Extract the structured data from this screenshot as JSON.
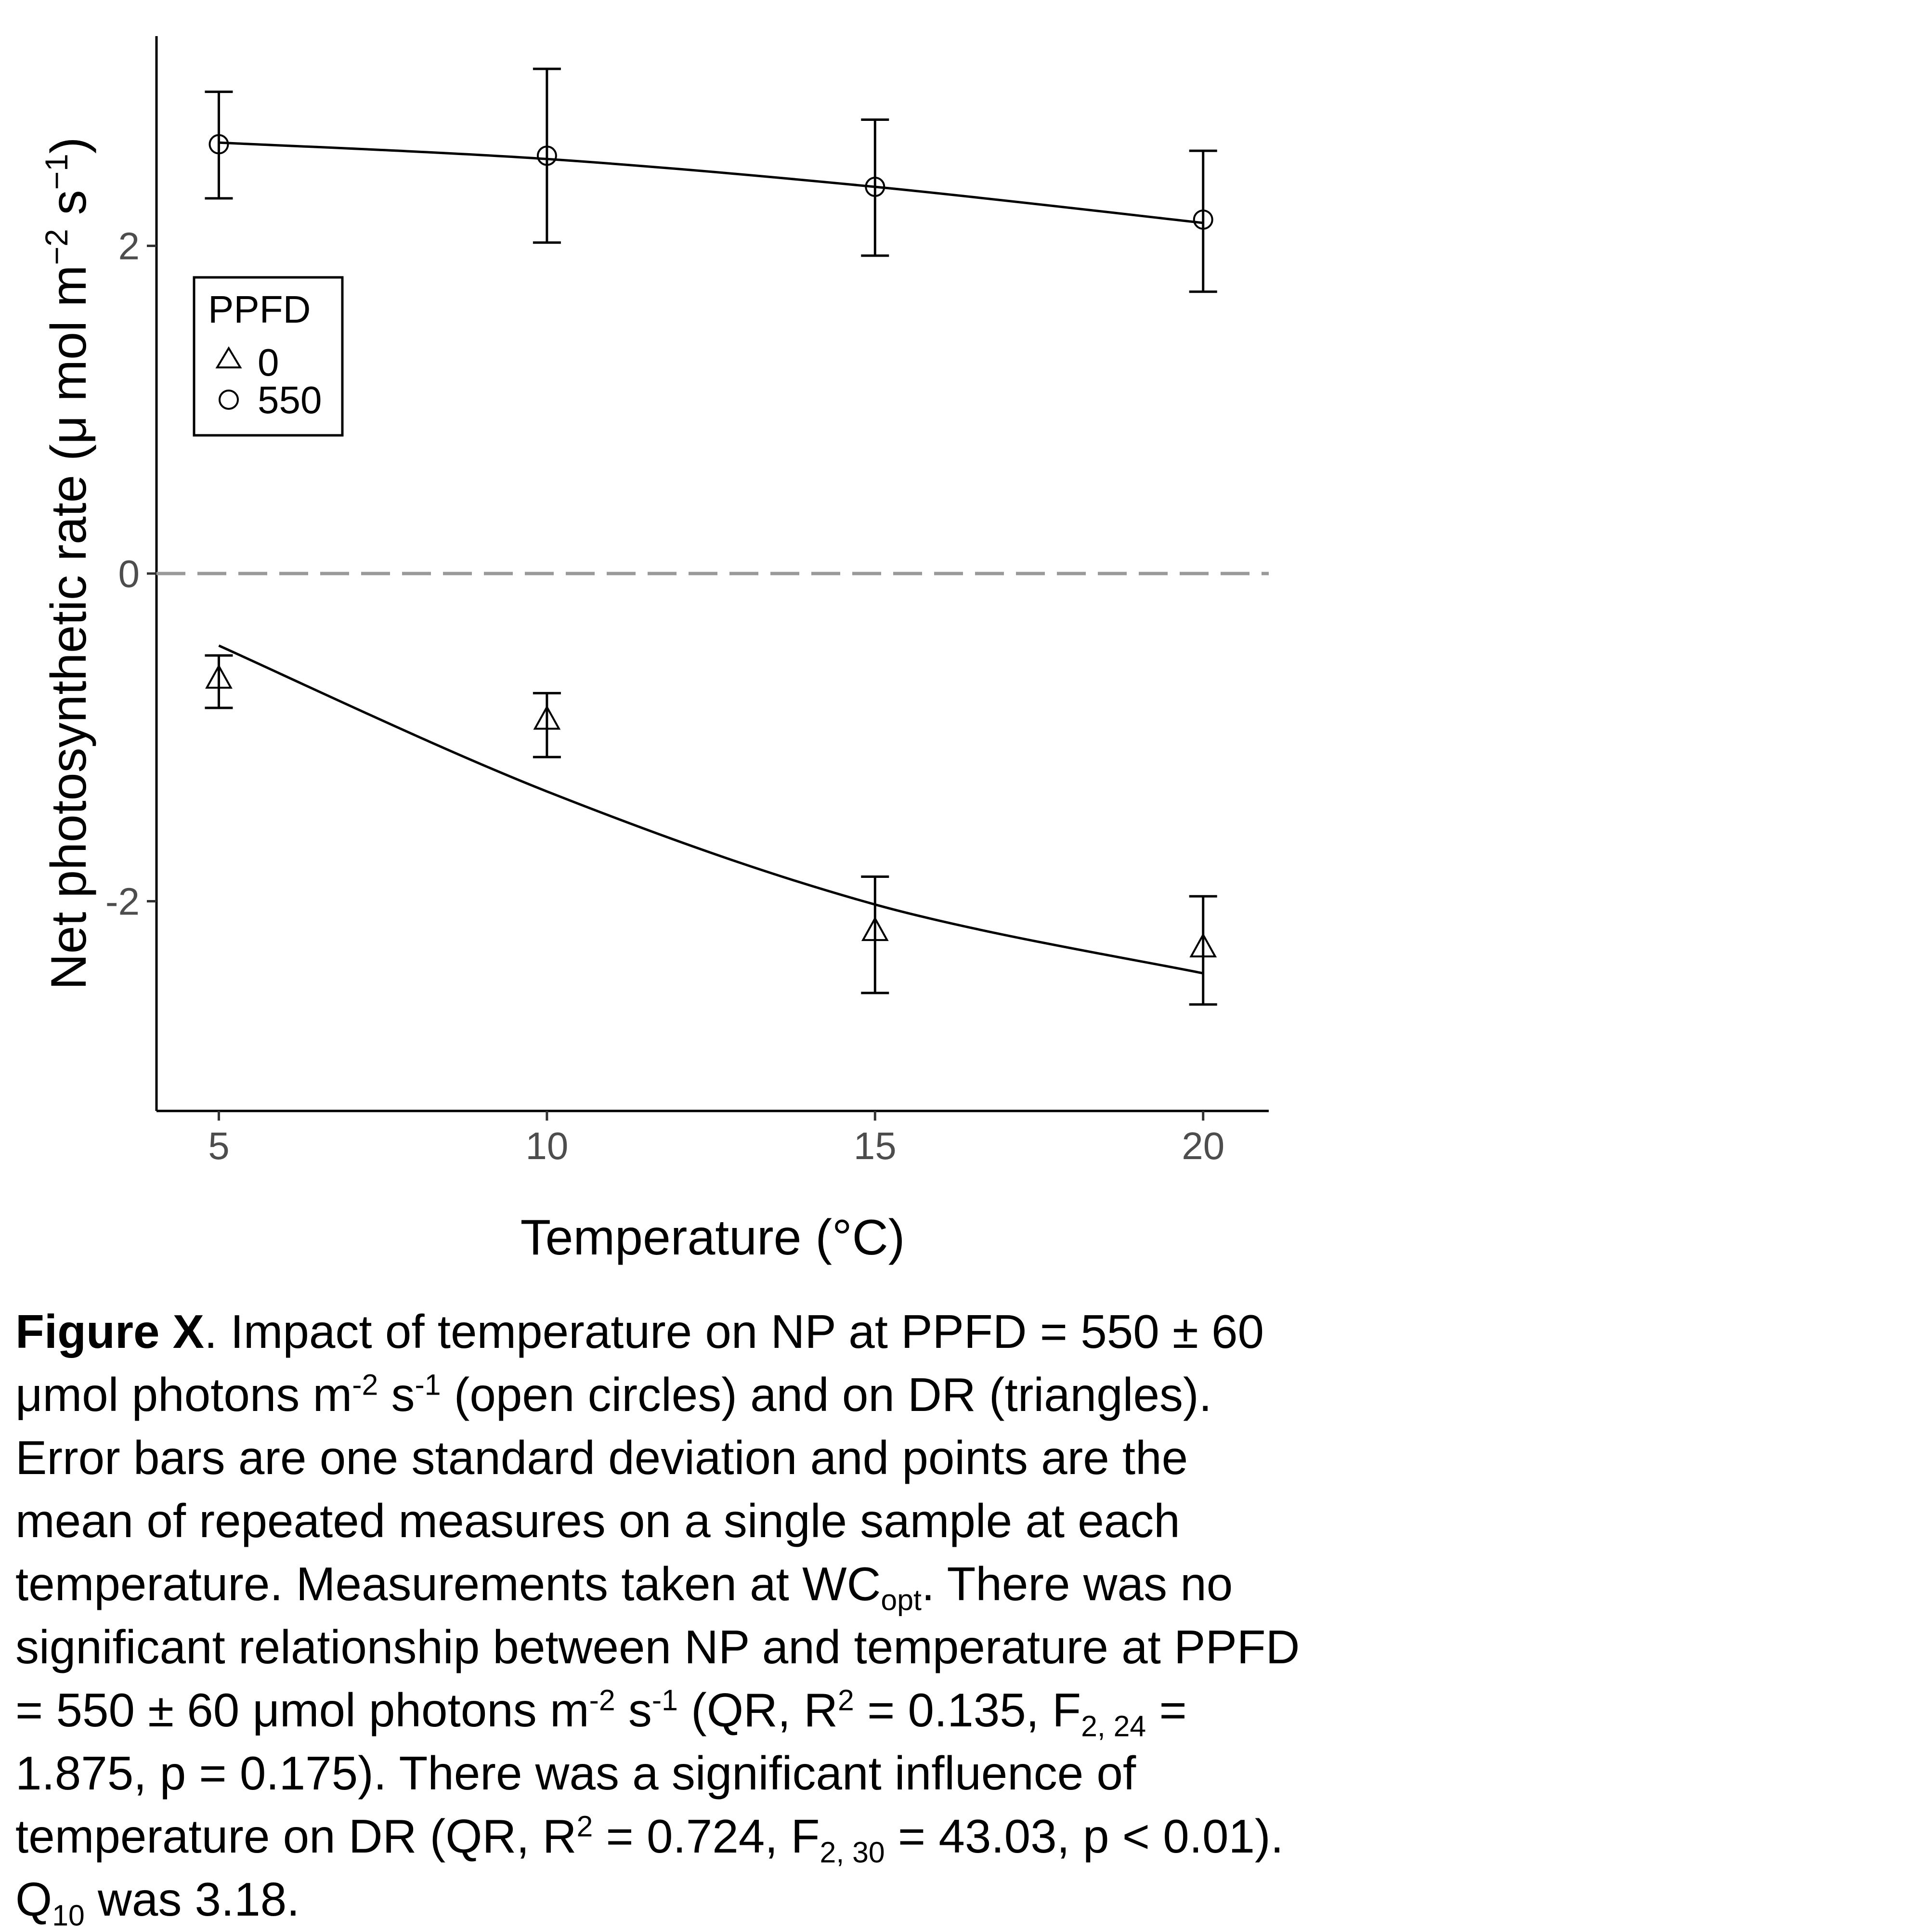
{
  "chart_data": {
    "type": "scatter",
    "x": [
      5,
      10,
      15,
      20
    ],
    "xlabel": "Temperature (°C)",
    "ylabel": "Net photosynthetic rate (μ mol m⁻² s⁻¹)",
    "ylabel_parts": {
      "main": "Net photosynthetic rate (μ mol m",
      "exp1": "−2",
      "mid": " s",
      "exp2": "−1",
      "end": ")"
    },
    "xlim": [
      4.05,
      21
    ],
    "ylim": [
      -3.28,
      3.28
    ],
    "xticks": [
      5,
      10,
      15,
      20
    ],
    "yticks": [
      -2,
      0,
      2
    ],
    "ytick_labels": [
      "-2",
      "0",
      "2"
    ],
    "grid": false,
    "reference_line": {
      "y": 0,
      "style": "dashed",
      "color": "#999999"
    },
    "legend": {
      "title": "PPFD",
      "placement": "top-left",
      "entries": [
        {
          "label": "0",
          "marker": "triangle"
        },
        {
          "label": "550",
          "marker": "circle"
        }
      ]
    },
    "series": [
      {
        "name": "550",
        "marker": "circle",
        "y": [
          2.62,
          2.55,
          2.36,
          2.16
        ],
        "err_low": [
          2.29,
          2.02,
          1.94,
          1.72
        ],
        "err_high": [
          2.94,
          3.08,
          2.77,
          2.58
        ],
        "fit": [
          2.63,
          2.53,
          2.36,
          2.14
        ]
      },
      {
        "name": "0",
        "marker": "triangle",
        "y": [
          -0.65,
          -0.9,
          -2.19,
          -2.29
        ],
        "err_low": [
          -0.82,
          -1.12,
          -2.56,
          -2.63
        ],
        "err_high": [
          -0.5,
          -0.73,
          -1.85,
          -1.97
        ],
        "fit": [
          -0.44,
          -1.33,
          -2.02,
          -2.44
        ]
      }
    ]
  },
  "caption": {
    "l1_bold": "Figure X",
    "l1": ". Impact of temperature on NP at PPFD = 550 ± 60",
    "l2a": "μmol photons m",
    "l2_sup1": "-2",
    "l2b": " s",
    "l2_sup2": "-1",
    "l2c": " (open circles) and on DR (triangles).",
    "l3": "Error bars are one standard deviation and points are the",
    "l4": "mean of repeated measures on a single sample at each",
    "l5a": "temperature. Measurements taken at WC",
    "l5_sub": "opt",
    "l5b": ". There was no",
    "l6": "significant relationship between NP and temperature at PPFD",
    "l7a": "= 550 ± 60 μmol photons m",
    "l7_sup1": "-2",
    "l7b": " s",
    "l7_sup2": "-1",
    "l7c": " (QR, R",
    "l7_sup3": "2",
    "l7d": " = 0.135, F",
    "l7_sub": "2, 24",
    "l7e": " =",
    "l8": "1.875, p = 0.175). There was a significant influence of",
    "l9a": "temperature on DR (QR, R",
    "l9_sup": "2",
    "l9b": " = 0.724, F",
    "l9_sub": "2, 30",
    "l9c": " = 43.03, p < 0.01).",
    "l10a": "Q",
    "l10_sub": "10",
    "l10b": " was 3.18."
  }
}
